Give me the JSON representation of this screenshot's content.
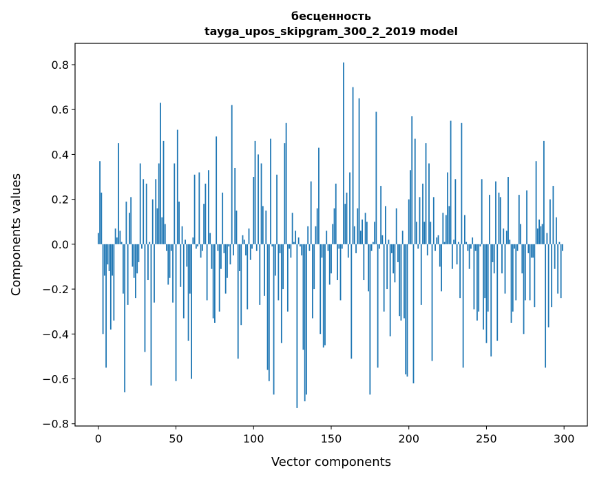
{
  "chart_data": {
    "type": "bar",
    "title": "бесценность",
    "subtitle": "tayga_upos_skipgram_300_2_2019 model",
    "xlabel": "Vector components",
    "ylabel": "Components values",
    "xlim": [
      -15,
      315
    ],
    "ylim": [
      -0.81,
      0.895
    ],
    "xticks": [
      0,
      50,
      100,
      150,
      200,
      250,
      300
    ],
    "xtick_labels": [
      "0",
      "50",
      "100",
      "150",
      "200",
      "250",
      "300"
    ],
    "yticks": [
      -0.8,
      -0.6,
      -0.4,
      -0.2,
      0.0,
      0.2,
      0.4,
      0.6,
      0.8
    ],
    "ytick_labels": [
      "−0.8",
      "−0.6",
      "−0.4",
      "−0.2",
      "0.0",
      "0.2",
      "0.4",
      "0.6",
      "0.8"
    ],
    "grid": false,
    "bar_color": "#1f77b4",
    "values": [
      0.05,
      0.37,
      0.23,
      -0.4,
      -0.14,
      -0.55,
      -0.09,
      -0.12,
      -0.38,
      -0.14,
      -0.34,
      0.07,
      0.03,
      0.45,
      0.06,
      0.01,
      -0.22,
      -0.66,
      0.19,
      -0.27,
      0.14,
      0.21,
      -0.1,
      -0.15,
      -0.24,
      -0.13,
      -0.08,
      0.36,
      -0.02,
      0.29,
      -0.48,
      0.27,
      -0.16,
      0.01,
      -0.63,
      0.2,
      -0.26,
      0.29,
      0.16,
      0.36,
      0.63,
      0.12,
      0.46,
      0.09,
      -0.03,
      -0.18,
      -0.15,
      -0.03,
      -0.26,
      0.36,
      -0.61,
      0.51,
      0.19,
      -0.19,
      0.08,
      -0.33,
      0.02,
      -0.1,
      -0.43,
      -0.22,
      -0.6,
      0.03,
      0.31,
      -0.02,
      -0.01,
      0.32,
      -0.06,
      -0.03,
      0.18,
      0.27,
      -0.25,
      0.33,
      0.05,
      -0.11,
      -0.33,
      -0.35,
      0.48,
      -0.03,
      -0.3,
      -0.11,
      0.23,
      -0.04,
      -0.22,
      -0.15,
      -0.01,
      -0.09,
      0.62,
      -0.05,
      0.34,
      0.15,
      -0.51,
      -0.12,
      -0.36,
      0.04,
      0.02,
      -0.05,
      -0.29,
      0.07,
      -0.07,
      -0.02,
      0.3,
      0.46,
      -0.03,
      0.4,
      -0.27,
      0.36,
      0.17,
      -0.23,
      0.15,
      -0.56,
      -0.61,
      0.47,
      -0.01,
      -0.67,
      -0.14,
      0.31,
      -0.25,
      -0.04,
      -0.44,
      -0.2,
      0.45,
      0.54,
      -0.3,
      -0.02,
      -0.06,
      0.14,
      0.01,
      0.06,
      -0.73,
      0.03,
      -0.01,
      -0.05,
      -0.47,
      -0.7,
      -0.67,
      0.08,
      -0.03,
      0.28,
      -0.33,
      -0.2,
      0.08,
      0.16,
      0.43,
      -0.4,
      -0.06,
      -0.46,
      -0.45,
      0.06,
      -0.03,
      -0.18,
      -0.13,
      0.09,
      0.16,
      0.27,
      -0.16,
      -0.02,
      -0.25,
      -0.02,
      0.81,
      0.18,
      0.23,
      -0.06,
      0.32,
      -0.51,
      0.7,
      0.08,
      -0.04,
      0.16,
      0.65,
      0.06,
      0.11,
      -0.16,
      0.14,
      0.1,
      -0.21,
      -0.67,
      -0.03,
      0.01,
      0.1,
      0.59,
      -0.55,
      -0.02,
      0.26,
      0.04,
      -0.3,
      0.17,
      -0.2,
      0.02,
      -0.41,
      -0.04,
      -0.13,
      -0.17,
      0.16,
      -0.08,
      -0.32,
      -0.34,
      0.06,
      -0.33,
      -0.58,
      -0.59,
      0.2,
      0.33,
      0.57,
      -0.62,
      0.47,
      0.1,
      -0.02,
      0.21,
      -0.27,
      0.27,
      0.1,
      0.45,
      -0.05,
      0.36,
      0.1,
      -0.52,
      0.21,
      -0.03,
      0.03,
      0.04,
      -0.1,
      -0.21,
      0.14,
      0.01,
      0.13,
      0.32,
      0.17,
      0.55,
      -0.11,
      0.02,
      0.29,
      -0.09,
      0.01,
      -0.24,
      0.54,
      -0.55,
      0.13,
      0.01,
      -0.03,
      -0.11,
      -0.02,
      0.03,
      -0.29,
      -0.03,
      -0.34,
      -0.3,
      -0.01,
      0.29,
      -0.38,
      -0.24,
      -0.44,
      -0.3,
      0.22,
      -0.5,
      -0.08,
      -0.13,
      0.28,
      -0.43,
      0.23,
      0.21,
      -0.13,
      0.07,
      -0.22,
      0.06,
      0.3,
      0.02,
      -0.35,
      -0.3,
      -0.02,
      -0.25,
      -0.03,
      0.22,
      0.09,
      -0.13,
      -0.4,
      -0.25,
      0.24,
      -0.04,
      -0.25,
      -0.06,
      -0.06,
      -0.28,
      0.37,
      0.07,
      0.11,
      0.08,
      0.09,
      0.46,
      -0.55,
      0.05,
      -0.37,
      0.2,
      -0.28,
      0.26,
      -0.11,
      0.12,
      -0.22,
      0.01,
      -0.24,
      -0.03
    ]
  }
}
